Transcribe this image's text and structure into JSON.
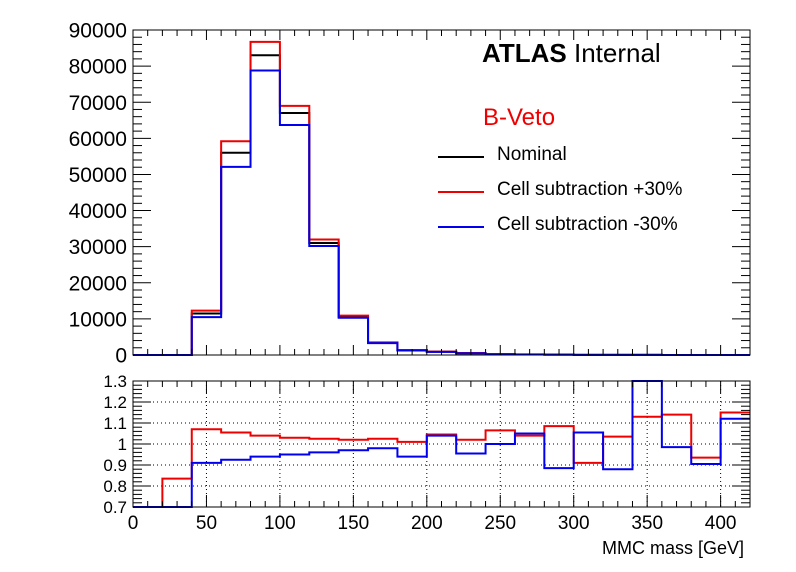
{
  "annotation": {
    "experiment": "ATLAS",
    "status": "Internal",
    "region": "B-Veto",
    "region_color": "#ee0000"
  },
  "colors": {
    "nominal": "#000000",
    "up": "#ee0000",
    "down": "#0000ee",
    "axis": "#000000",
    "grid": "#000000"
  },
  "chart_data": [
    {
      "type": "line",
      "step": true,
      "title": "",
      "xlabel": "",
      "ylabel": "",
      "xlim": [
        0,
        420
      ],
      "ylim": [
        0,
        90000
      ],
      "bin_edges": [
        0,
        20,
        40,
        60,
        80,
        100,
        120,
        140,
        160,
        180,
        200,
        220,
        240,
        260,
        280,
        300,
        320,
        340,
        360,
        380,
        400,
        420
      ],
      "y_ticks": [
        0,
        10000,
        20000,
        30000,
        40000,
        50000,
        60000,
        70000,
        80000,
        90000
      ],
      "y_tick_labels": [
        "0",
        "10000",
        "20000",
        "30000",
        "40000",
        "50000",
        "60000",
        "70000",
        "80000",
        "90000"
      ],
      "legend_position": "top-right",
      "series": [
        {
          "name": "Nominal",
          "color": "#000000",
          "values": [
            0,
            0,
            11500,
            56000,
            83000,
            67000,
            31000,
            10600,
            3400,
            1300,
            900,
            500,
            200,
            150,
            100,
            40,
            30,
            20,
            10,
            5,
            5
          ]
        },
        {
          "name": "Cell subtraction +30%",
          "color": "#ee0000",
          "values": [
            0,
            0,
            12300,
            59200,
            86700,
            69000,
            32000,
            10900,
            3500,
            1400,
            950,
            550,
            210,
            160,
            110,
            40,
            30,
            20,
            10,
            5,
            5
          ]
        },
        {
          "name": "Cell subtraction -30%",
          "color": "#0000ee",
          "values": [
            0,
            0,
            10500,
            52100,
            78800,
            63700,
            30200,
            10300,
            3300,
            1250,
            860,
            480,
            195,
            145,
            95,
            40,
            30,
            20,
            10,
            5,
            5
          ]
        }
      ]
    },
    {
      "type": "line",
      "step": true,
      "title": "",
      "xlabel": "MMC mass  [GeV]",
      "ylabel": "",
      "xlim": [
        0,
        420
      ],
      "ylim": [
        0.7,
        1.3
      ],
      "grid": true,
      "bin_edges": [
        0,
        20,
        40,
        60,
        80,
        100,
        120,
        140,
        160,
        180,
        200,
        220,
        240,
        260,
        280,
        300,
        320,
        340,
        360,
        380,
        400,
        420
      ],
      "x_ticks": [
        0,
        50,
        100,
        150,
        200,
        250,
        300,
        350,
        400
      ],
      "x_tick_labels": [
        "0",
        "50",
        "100",
        "150",
        "200",
        "250",
        "300",
        "350",
        "400"
      ],
      "y_ticks": [
        0.7,
        0.8,
        0.9,
        1.0,
        1.1,
        1.2,
        1.3
      ],
      "y_tick_labels": [
        "0.7",
        "0.8",
        "0.9",
        "1",
        "1.1",
        "1.2",
        "1.3"
      ],
      "series": [
        {
          "color": "#ee0000",
          "values": [
            0.7,
            0.835,
            1.07,
            1.055,
            1.04,
            1.03,
            1.025,
            1.02,
            1.025,
            1.01,
            1.045,
            1.02,
            1.065,
            1.04,
            1.085,
            0.91,
            1.035,
            1.13,
            1.14,
            0.935,
            1.15
          ]
        },
        {
          "color": "#0000ee",
          "values": [
            0.7,
            0.7,
            0.91,
            0.925,
            0.94,
            0.95,
            0.96,
            0.97,
            0.98,
            0.94,
            1.04,
            0.955,
            1.0,
            1.05,
            0.885,
            1.055,
            0.88,
            1.3,
            0.985,
            0.905,
            1.12
          ]
        }
      ]
    }
  ]
}
